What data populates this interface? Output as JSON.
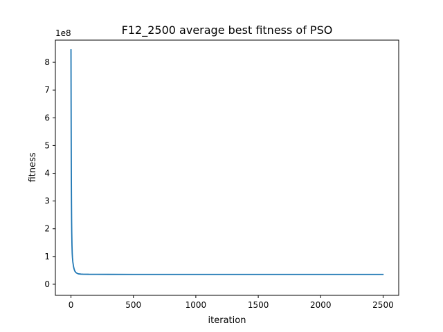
{
  "chart_data": {
    "type": "line",
    "title": "F12_2500 average best fitness of PSO",
    "xlabel": "iteration",
    "ylabel": "fitness",
    "y_offset_label": "1e8",
    "xlim": [
      -125,
      2625
    ],
    "ylim": [
      -0.4,
      8.8
    ],
    "x_ticks": [
      0,
      500,
      1000,
      1500,
      2000,
      2500
    ],
    "y_ticks": [
      0,
      1,
      2,
      3,
      4,
      5,
      6,
      7,
      8
    ],
    "grid": false,
    "series": [
      {
        "color": "#1f77b4",
        "x": [
          0,
          1,
          2,
          3,
          4,
          5,
          6,
          8,
          10,
          12,
          15,
          20,
          25,
          30,
          40,
          50,
          60,
          80,
          100,
          150,
          200,
          300,
          500,
          1000,
          1500,
          2000,
          2499
        ],
        "y": [
          8.45,
          6.5,
          4.8,
          3.7,
          2.9,
          2.3,
          1.9,
          1.4,
          1.1,
          0.95,
          0.8,
          0.65,
          0.55,
          0.48,
          0.42,
          0.39,
          0.375,
          0.365,
          0.36,
          0.358,
          0.357,
          0.356,
          0.355,
          0.355,
          0.355,
          0.355,
          0.355
        ]
      }
    ]
  }
}
